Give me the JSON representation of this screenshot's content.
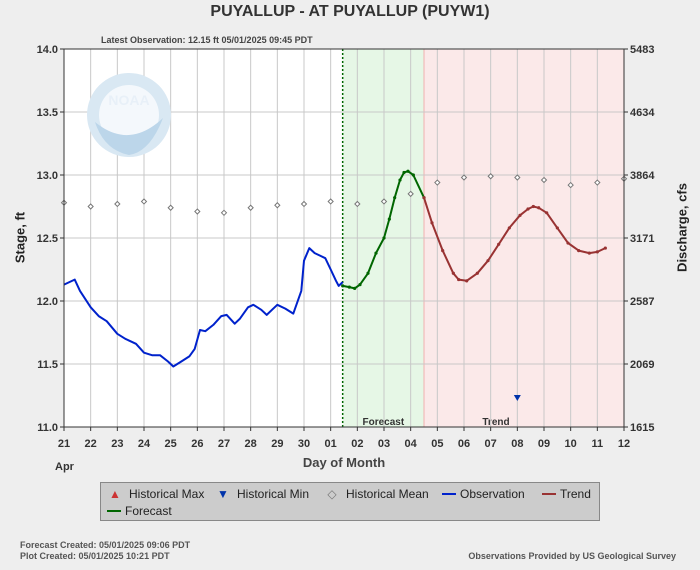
{
  "title": "PUYALLUP - AT PUYALLUP  (PUYW1)",
  "latest_observation": "Latest Observation:  12.15 ft 05/01/2025 09:45 PDT",
  "xlabel": "Day of Month",
  "ylabel": "Stage, ft",
  "y2label": "Discharge, cfs",
  "month_label": "Apr",
  "forecast_created": "Forecast Created: 05/01/2025 09:06 PDT",
  "plot_created": "Plot Created: 05/01/2025 10:21 PDT",
  "credit": "Observations Provided by US Geological Survey",
  "legend": {
    "hist_max": "Historical Max",
    "hist_min": "Historical Min",
    "hist_mean": "Historical Mean",
    "observation": "Observation",
    "trend": "Trend",
    "forecast": "Forecast"
  },
  "colors": {
    "observation": "#0022cc",
    "forecast": "#006600",
    "trend": "#993333",
    "hist_max": "#cc3333",
    "hist_min": "#0033aa",
    "hist_mean": "#777777",
    "forecast_shade": "#e6f7e6",
    "trend_shade": "#fbe9e9"
  },
  "chart_data": {
    "type": "line",
    "x_unit": "day index (0 = Apr 21)",
    "xlim": [
      0,
      21
    ],
    "xticks": [
      "21",
      "22",
      "23",
      "24",
      "25",
      "26",
      "27",
      "28",
      "29",
      "30",
      "01",
      "02",
      "03",
      "04",
      "05",
      "06",
      "07",
      "08",
      "09",
      "10",
      "11",
      "12"
    ],
    "ylim": [
      11.0,
      14.0
    ],
    "yticks": [
      "11.0",
      "11.5",
      "12.0",
      "12.5",
      "13.0",
      "13.5",
      "14.0"
    ],
    "y2ticks": [
      "1615",
      "2069",
      "2587",
      "3171",
      "3864",
      "4634",
      "5483"
    ],
    "forecast_start": 10.45,
    "trend_start": 13.5,
    "shade_labels": {
      "forecast": "Forecast",
      "trend": "Trend"
    },
    "series": [
      {
        "name": "Observation",
        "points": [
          [
            0,
            12.13
          ],
          [
            0.4,
            12.17
          ],
          [
            0.6,
            12.08
          ],
          [
            1,
            11.95
          ],
          [
            1.3,
            11.88
          ],
          [
            1.6,
            11.84
          ],
          [
            2,
            11.74
          ],
          [
            2.3,
            11.7
          ],
          [
            2.7,
            11.66
          ],
          [
            3,
            11.59
          ],
          [
            3.3,
            11.57
          ],
          [
            3.6,
            11.57
          ],
          [
            3.9,
            11.52
          ],
          [
            4.1,
            11.48
          ],
          [
            4.4,
            11.52
          ],
          [
            4.7,
            11.56
          ],
          [
            4.9,
            11.62
          ],
          [
            5.1,
            11.77
          ],
          [
            5.3,
            11.76
          ],
          [
            5.6,
            11.81
          ],
          [
            5.9,
            11.88
          ],
          [
            6.1,
            11.89
          ],
          [
            6.4,
            11.82
          ],
          [
            6.6,
            11.86
          ],
          [
            6.9,
            11.95
          ],
          [
            7.1,
            11.97
          ],
          [
            7.4,
            11.93
          ],
          [
            7.6,
            11.89
          ],
          [
            7.8,
            11.93
          ],
          [
            8.0,
            11.97
          ],
          [
            8.3,
            11.94
          ],
          [
            8.6,
            11.9
          ],
          [
            8.9,
            12.08
          ],
          [
            9.0,
            12.32
          ],
          [
            9.2,
            12.42
          ],
          [
            9.4,
            12.38
          ],
          [
            9.6,
            12.36
          ],
          [
            9.8,
            12.34
          ],
          [
            10.0,
            12.25
          ],
          [
            10.2,
            12.16
          ],
          [
            10.3,
            12.12
          ],
          [
            10.45,
            12.15
          ]
        ]
      },
      {
        "name": "Forecast",
        "points": [
          [
            10.45,
            12.12
          ],
          [
            10.7,
            12.11
          ],
          [
            10.9,
            12.1
          ],
          [
            11.1,
            12.13
          ],
          [
            11.4,
            12.22
          ],
          [
            11.7,
            12.38
          ],
          [
            12.0,
            12.5
          ],
          [
            12.2,
            12.65
          ],
          [
            12.4,
            12.82
          ],
          [
            12.6,
            12.96
          ],
          [
            12.75,
            13.02
          ],
          [
            12.9,
            13.03
          ],
          [
            13.1,
            13.0
          ],
          [
            13.5,
            12.82
          ]
        ]
      },
      {
        "name": "Trend",
        "points": [
          [
            13.5,
            12.82
          ],
          [
            13.8,
            12.62
          ],
          [
            14.2,
            12.4
          ],
          [
            14.6,
            12.22
          ],
          [
            14.8,
            12.17
          ],
          [
            15.1,
            12.16
          ],
          [
            15.5,
            12.22
          ],
          [
            15.9,
            12.32
          ],
          [
            16.3,
            12.45
          ],
          [
            16.7,
            12.58
          ],
          [
            17.1,
            12.68
          ],
          [
            17.4,
            12.73
          ],
          [
            17.6,
            12.75
          ],
          [
            17.8,
            12.74
          ],
          [
            18.1,
            12.7
          ],
          [
            18.5,
            12.58
          ],
          [
            18.9,
            12.46
          ],
          [
            19.3,
            12.4
          ],
          [
            19.7,
            12.38
          ],
          [
            20.0,
            12.39
          ],
          [
            20.3,
            12.42
          ]
        ]
      },
      {
        "name": "Historical Mean",
        "points": [
          [
            0,
            12.78
          ],
          [
            1,
            12.75
          ],
          [
            2,
            12.77
          ],
          [
            3,
            12.79
          ],
          [
            4,
            12.74
          ],
          [
            5,
            12.71
          ],
          [
            6,
            12.7
          ],
          [
            7,
            12.74
          ],
          [
            8,
            12.76
          ],
          [
            9,
            12.77
          ],
          [
            10,
            12.79
          ],
          [
            11,
            12.77
          ],
          [
            12,
            12.79
          ],
          [
            13,
            12.85
          ],
          [
            14,
            12.94
          ],
          [
            15,
            12.98
          ],
          [
            16,
            12.99
          ],
          [
            17,
            12.98
          ],
          [
            18,
            12.96
          ],
          [
            19,
            12.92
          ],
          [
            20,
            12.94
          ],
          [
            21,
            12.97
          ]
        ]
      },
      {
        "name": "Historical Min",
        "points": [
          [
            17,
            11.23
          ]
        ]
      }
    ]
  }
}
